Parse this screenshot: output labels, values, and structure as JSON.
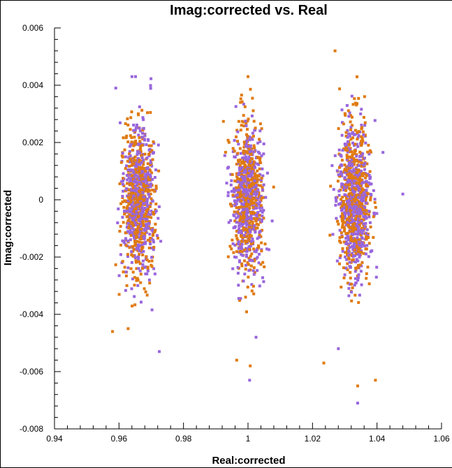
{
  "chart_data": {
    "type": "scatter",
    "title": "Imag:corrected vs. Real",
    "xlabel": "Real:corrected",
    "ylabel": "Imag:corrected",
    "xlim": [
      0.94,
      1.06
    ],
    "ylim": [
      -0.008,
      0.006
    ],
    "xticks": [
      "0.94",
      "0.96",
      "0.98",
      "1",
      "1.02",
      "1.04",
      "1.06"
    ],
    "yticks": [
      "0.006",
      "0.004",
      "0.002",
      "0",
      "-0.002",
      "-0.004",
      "-0.006",
      "-0.008"
    ],
    "grid": false,
    "series_colors": [
      "#9966dd",
      "#e07a10"
    ],
    "clusters": [
      {
        "x_center": 0.966,
        "x_spread": 0.0035,
        "y_spread": 0.0013,
        "count": 1000
      },
      {
        "x_center": 1.0,
        "x_spread": 0.0033,
        "y_spread": 0.0013,
        "count": 900
      },
      {
        "x_center": 1.033,
        "x_spread": 0.0035,
        "y_spread": 0.0013,
        "count": 1000
      }
    ],
    "outliers": [
      {
        "x": 1.027,
        "y": 0.0052
      },
      {
        "x": 0.9725,
        "y": -0.0053
      },
      {
        "x": 0.9965,
        "y": -0.0056
      },
      {
        "x": 1.0005,
        "y": -0.0063
      },
      {
        "x": 1.0007,
        "y": -0.0058
      },
      {
        "x": 1.0025,
        "y": -0.0048
      },
      {
        "x": 1.0235,
        "y": -0.0057
      },
      {
        "x": 1.028,
        "y": -0.0052
      },
      {
        "x": 1.034,
        "y": -0.0065
      },
      {
        "x": 1.034,
        "y": -0.0071
      },
      {
        "x": 1.0395,
        "y": -0.0063
      },
      {
        "x": 1.048,
        "y": 0.0002
      },
      {
        "x": 0.958,
        "y": -0.0046
      },
      {
        "x": 0.959,
        "y": 0.0039
      },
      {
        "x": 1.0,
        "y": 0.0043
      }
    ]
  }
}
